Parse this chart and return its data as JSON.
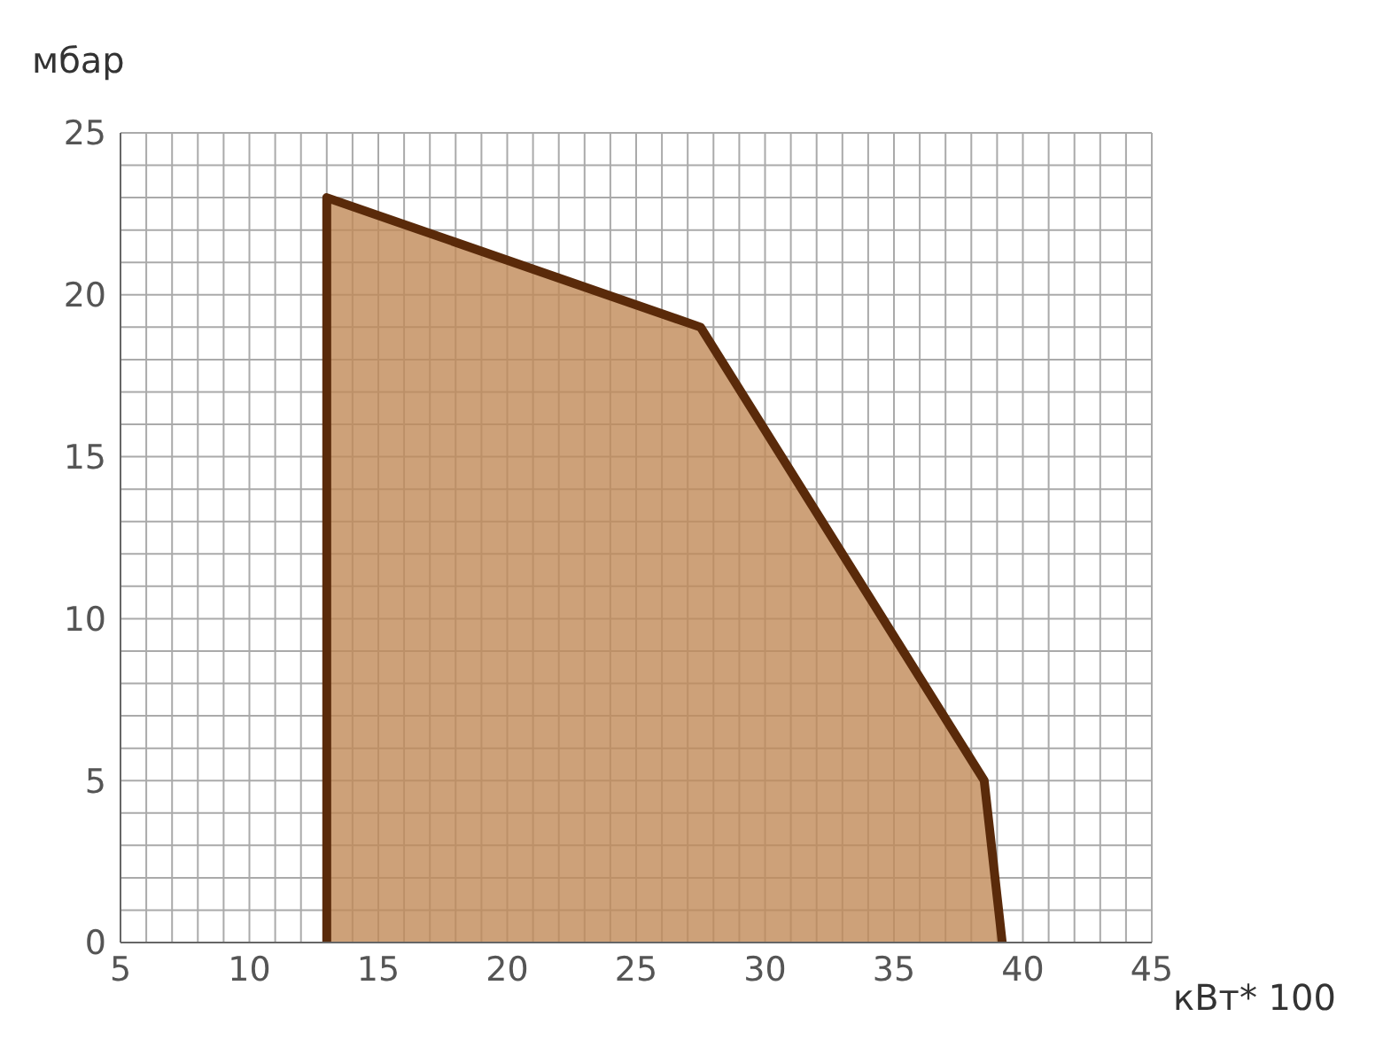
{
  "chart_data": {
    "type": "area",
    "xlabel": "кВт* 100",
    "ylabel": "мбар",
    "x": [
      13,
      13,
      27.5,
      38.5,
      39.2
    ],
    "series": [
      {
        "color": "#5a2a0a",
        "values": [
          0,
          23,
          19,
          5,
          0
        ]
      }
    ],
    "xlim": [
      5,
      45
    ],
    "xticks": [
      5,
      {
        "value": 6,
        "label": null
      },
      {
        "value": 7,
        "label": null
      },
      {
        "value": 8,
        "label": null
      },
      {
        "value": 9,
        "label": null
      },
      10,
      {
        "value": 11,
        "label": null
      },
      {
        "value": 12,
        "label": null
      },
      {
        "value": 13,
        "label": null
      },
      {
        "value": 14,
        "label": null
      },
      15,
      {
        "value": 16,
        "label": null
      },
      {
        "value": 17,
        "label": null
      },
      {
        "value": 18,
        "label": null
      },
      {
        "value": 19,
        "label": null
      },
      20,
      {
        "value": 21,
        "label": null
      },
      {
        "value": 22,
        "label": null
      },
      {
        "value": 23,
        "label": null
      },
      {
        "value": 24,
        "label": null
      },
      25,
      {
        "value": 26,
        "label": null
      },
      {
        "value": 27,
        "label": null
      },
      {
        "value": 28,
        "label": null
      },
      {
        "value": 29,
        "label": null
      },
      30,
      {
        "value": 31,
        "label": null
      },
      {
        "value": 32,
        "label": null
      },
      {
        "value": 33,
        "label": null
      },
      {
        "value": 34,
        "label": null
      },
      35,
      {
        "value": 36,
        "label": null
      },
      {
        "value": 37,
        "label": null
      },
      {
        "value": 38,
        "label": null
      },
      {
        "value": 39,
        "label": null
      },
      40,
      {
        "value": 41,
        "label": null
      },
      {
        "value": 42,
        "label": null
      },
      {
        "value": 43,
        "label": null
      },
      {
        "value": 44,
        "label": null
      },
      45
    ],
    "ylim": [
      0,
      25
    ],
    "yticks": [
      0,
      {
        "value": 1,
        "label": null
      },
      {
        "value": 2,
        "label": null
      },
      {
        "value": 3,
        "label": null
      },
      {
        "value": 4,
        "label": null
      },
      5,
      {
        "value": 6,
        "label": null
      },
      {
        "value": 7,
        "label": null
      },
      {
        "value": 8,
        "label": null
      },
      {
        "value": 9,
        "label": null
      },
      10,
      {
        "value": 11,
        "label": null
      },
      {
        "value": 12,
        "label": null
      },
      {
        "value": 13,
        "label": null
      },
      {
        "value": 14,
        "label": null
      },
      15,
      {
        "value": 16,
        "label": null
      },
      {
        "value": 17,
        "label": null
      },
      {
        "value": 18,
        "label": null
      },
      {
        "value": 19,
        "label": null
      },
      20,
      {
        "value": 21,
        "label": null
      },
      {
        "value": 22,
        "label": null
      },
      {
        "value": 23,
        "label": null
      },
      {
        "value": 24,
        "label": null
      },
      25
    ],
    "grid": true,
    "legend": false
  }
}
